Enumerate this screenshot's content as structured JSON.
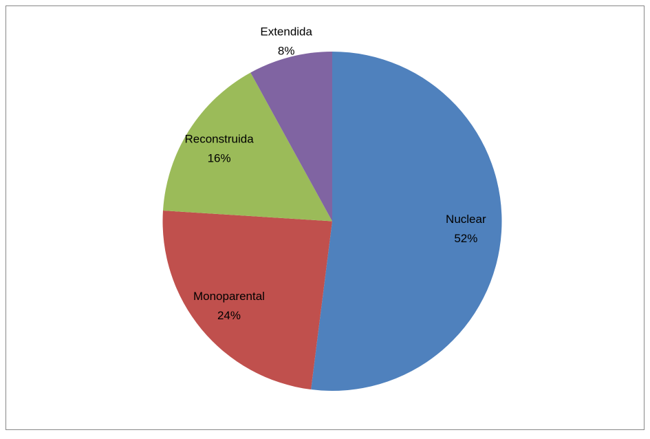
{
  "chart_data": {
    "type": "pie",
    "categories": [
      "Nuclear",
      "Monoparental",
      "Reconstruida",
      "Extendida"
    ],
    "values": [
      52,
      24,
      16,
      8
    ],
    "value_labels": [
      "52%",
      "24%",
      "16%",
      "8%"
    ],
    "colors": [
      "#4f81bd",
      "#c0504d",
      "#9bbb59",
      "#8064a2"
    ]
  }
}
